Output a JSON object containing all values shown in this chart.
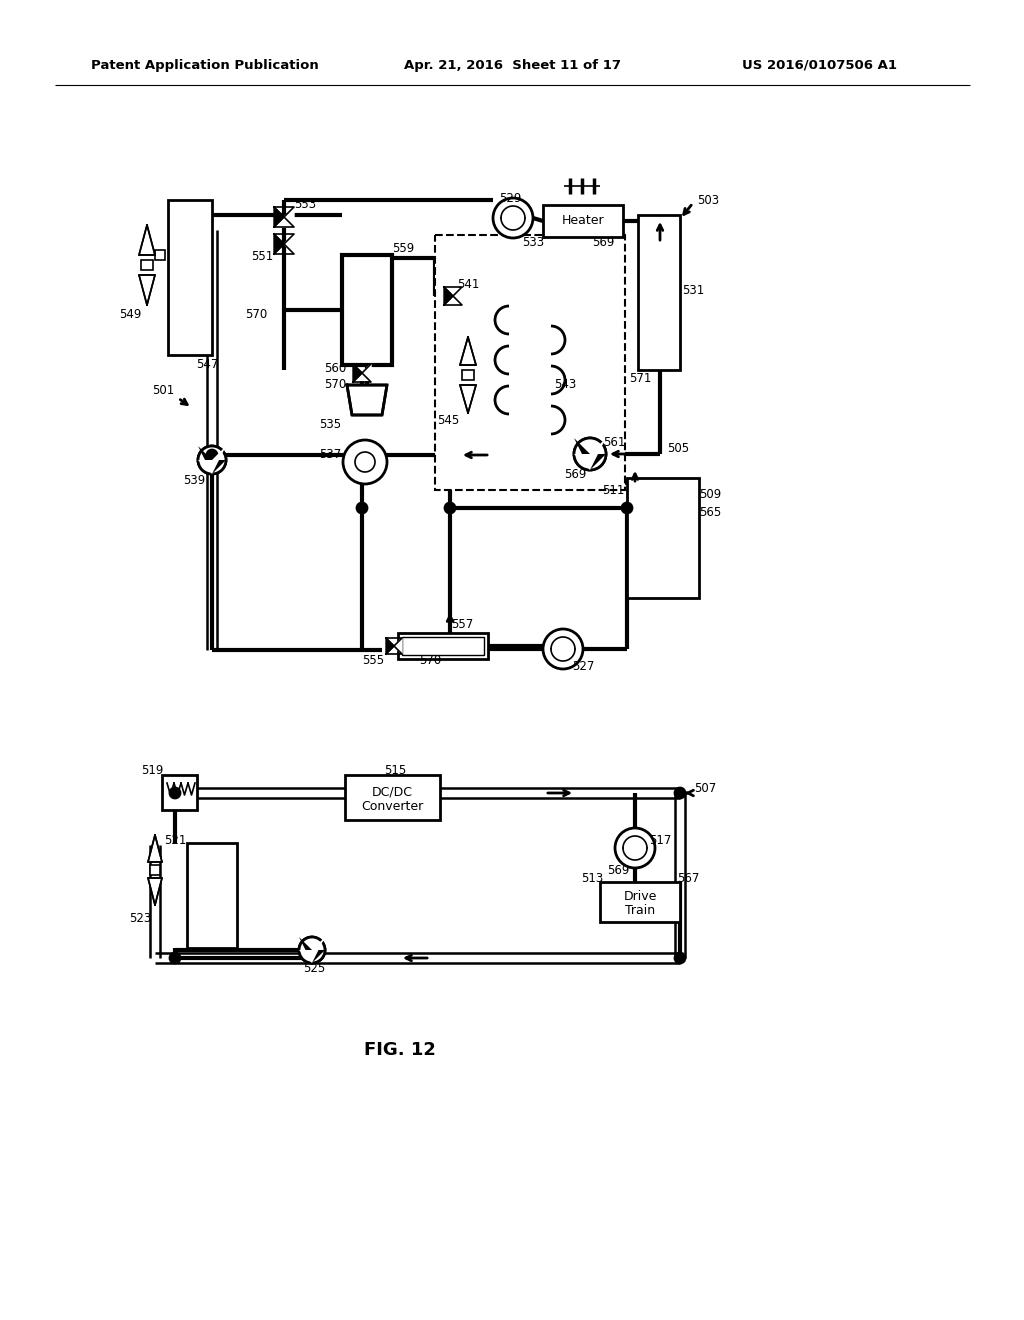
{
  "title_left": "Patent Application Publication",
  "title_mid": "Apr. 21, 2016  Sheet 11 of 17",
  "title_right": "US 2016/0107506 A1",
  "fig_label": "FIG. 12",
  "bg_color": "#ffffff",
  "line_color": "#000000",
  "lw": 2.0,
  "lw_thick": 3.0,
  "lw_dashed": 1.5,
  "lw_double": 5.0
}
